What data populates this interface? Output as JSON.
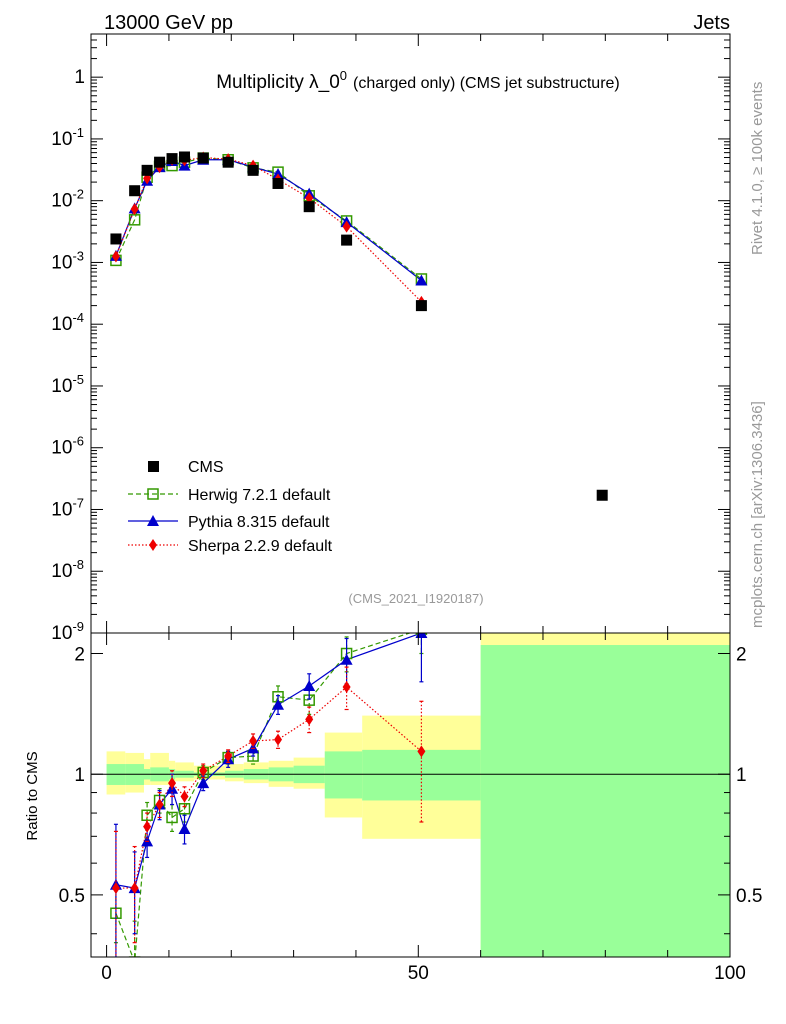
{
  "header": {
    "left": "13000 GeV pp",
    "right": "Jets",
    "side_top": "Rivet 4.1.0, ≥ 100k events",
    "side_bottom": "mcplots.cern.ch [arXiv:1306.3436]",
    "plot_id": "(CMS_2021_I1920187)"
  },
  "chart_data": {
    "type": "scatter",
    "title_main": "Multiplicity λ_0",
    "title_sup": "0",
    "title_sub": "(charged only) (CMS jet substructure)",
    "xlabel": "",
    "ylabel_ratio": "Ratio to CMS",
    "xlim": [
      -2.5,
      100
    ],
    "ylim_main": [
      1e-09,
      5
    ],
    "ylim_ratio": [
      0.35,
      2.25
    ],
    "x_ticks": [
      "0",
      "50",
      "100"
    ],
    "y_ticks_main": [
      "1",
      "10^-1",
      "10^-2",
      "10^-3",
      "10^-4",
      "10^-5",
      "10^-6",
      "10^-7",
      "10^-8",
      "10^-9"
    ],
    "y_ticks_ratio": [
      "0.5",
      "1",
      "2"
    ],
    "legend": [
      "CMS",
      "Herwig 7.2.1 default",
      "Pythia 8.315 default",
      "Sherpa 2.2.9 default"
    ],
    "cms": {
      "name": "CMS",
      "x": [
        1.5,
        4.5,
        6.5,
        8.5,
        10.5,
        12.5,
        15.5,
        19.5,
        23.5,
        27.5,
        32.5,
        38.5,
        50.5,
        79.5
      ],
      "y": [
        0.0024,
        0.0145,
        0.031,
        0.042,
        0.048,
        0.051,
        0.049,
        0.042,
        0.031,
        0.019,
        0.008,
        0.0023,
        0.0002,
        1.7e-07
      ]
    },
    "series": [
      {
        "name": "Herwig 7.2.1 default",
        "color": "#339900",
        "marker": "open-square",
        "x": [
          1.5,
          4.5,
          6.5,
          8.5,
          10.5,
          12.5,
          15.5,
          19.5,
          23.5,
          27.5,
          32.5,
          38.5,
          50.5
        ],
        "y": [
          0.00108,
          0.0049,
          0.024,
          0.036,
          0.037,
          0.042,
          0.049,
          0.046,
          0.034,
          0.029,
          0.012,
          0.0047,
          0.00054
        ],
        "ratio": [
          0.45,
          0.34,
          0.79,
          0.86,
          0.78,
          0.82,
          1.01,
          1.1,
          1.11,
          1.56,
          1.53,
          2.0,
          2.3
        ],
        "ratio_err": [
          0.07,
          0.09,
          0.06,
          0.06,
          0.06,
          0.06,
          0.04,
          0.04,
          0.05,
          0.1,
          0.12,
          0.2,
          0.3
        ]
      },
      {
        "name": "Pythia 8.315 default",
        "color": "#0000cc",
        "marker": "triangle",
        "x": [
          1.5,
          4.5,
          6.5,
          8.5,
          10.5,
          12.5,
          15.5,
          19.5,
          23.5,
          27.5,
          32.5,
          38.5,
          50.5
        ],
        "y": [
          0.00128,
          0.0075,
          0.021,
          0.035,
          0.044,
          0.037,
          0.046,
          0.046,
          0.035,
          0.027,
          0.013,
          0.0045,
          0.00051
        ],
        "ratio": [
          0.53,
          0.52,
          0.68,
          0.84,
          0.92,
          0.73,
          0.95,
          1.09,
          1.16,
          1.49,
          1.66,
          1.93,
          2.25
        ],
        "ratio_err": [
          0.22,
          0.12,
          0.06,
          0.07,
          0.08,
          0.06,
          0.04,
          0.05,
          0.05,
          0.08,
          0.12,
          0.25,
          0.55
        ]
      },
      {
        "name": "Sherpa 2.2.9 default",
        "color": "#ee0000",
        "marker": "diamond",
        "x": [
          1.5,
          4.5,
          6.5,
          8.5,
          10.5,
          12.5,
          15.5,
          19.5,
          23.5,
          27.5,
          32.5,
          38.5,
          50.5
        ],
        "y": [
          0.00125,
          0.0073,
          0.023,
          0.035,
          0.046,
          0.045,
          0.05,
          0.047,
          0.037,
          0.022,
          0.011,
          0.0038,
          0.00023
        ],
        "ratio": [
          0.52,
          0.52,
          0.74,
          0.84,
          0.95,
          0.88,
          1.02,
          1.11,
          1.21,
          1.22,
          1.37,
          1.65,
          1.14
        ],
        "ratio_err": [
          0.2,
          0.14,
          0.06,
          0.06,
          0.07,
          0.05,
          0.04,
          0.04,
          0.05,
          0.06,
          0.1,
          0.2,
          0.38
        ]
      }
    ],
    "uncertainty_bands": {
      "edges": [
        0,
        3,
        6,
        7,
        10,
        11,
        14,
        15,
        17,
        19,
        22,
        26,
        30,
        35,
        41,
        60,
        100
      ],
      "stat_lo": [
        0.94,
        0.94,
        0.97,
        0.96,
        0.97,
        0.98,
        0.99,
        0.99,
        0.99,
        0.98,
        0.97,
        0.96,
        0.95,
        0.87,
        0.86,
        0.35
      ],
      "stat_hi": [
        1.06,
        1.06,
        1.03,
        1.04,
        1.03,
        1.02,
        1.01,
        1.01,
        1.01,
        1.02,
        1.03,
        1.04,
        1.05,
        1.14,
        1.15,
        2.1
      ],
      "tot_lo": [
        0.89,
        0.9,
        0.94,
        0.94,
        0.95,
        0.96,
        0.97,
        0.97,
        0.97,
        0.96,
        0.95,
        0.93,
        0.92,
        0.78,
        0.69,
        0.35
      ],
      "tot_hi": [
        1.14,
        1.13,
        1.09,
        1.13,
        1.08,
        1.07,
        1.05,
        1.05,
        1.05,
        1.06,
        1.07,
        1.08,
        1.1,
        1.27,
        1.4,
        2.25
      ]
    }
  }
}
